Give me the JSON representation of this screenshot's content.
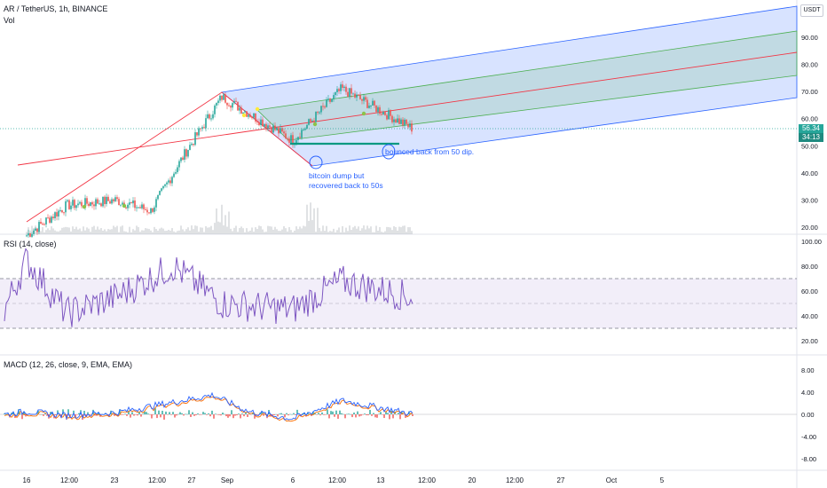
{
  "header": {
    "symbol": "AR / TetherUS, 1h, BINANCE",
    "volume_label": "Vol",
    "currency": "USDT"
  },
  "price_scale": {
    "ticks": [
      "90.00",
      "80.00",
      "70.00",
      "60.00",
      "50.00",
      "40.00",
      "30.00",
      "20.00"
    ],
    "last_price": "56.34",
    "countdown": "34:13",
    "last_price_color": "#26a69a"
  },
  "rsi": {
    "title": "RSI (14, close)",
    "ticks": [
      "100.00",
      "80.00",
      "60.00",
      "40.00",
      "20.00"
    ],
    "band": [
      30,
      70
    ]
  },
  "macd": {
    "title": "MACD (12, 26, close, 9, EMA, EMA)",
    "ticks": [
      "8.00",
      "4.00",
      "0.00",
      "-4.00",
      "-8.00"
    ]
  },
  "time_axis": {
    "labels": [
      "16",
      "12:00",
      "23",
      "12:00",
      "27",
      "Sep",
      "6",
      "12:00",
      "13",
      "12:00",
      "20",
      "12:00",
      "27",
      "Oct",
      "5"
    ]
  },
  "annotations": {
    "bitcoin_dump_line1": "bitcoin dump but",
    "bitcoin_dump_line2": "recovered back to 50s",
    "bounce": "bounced back from 50 dip."
  },
  "colors": {
    "channel_fill": "#2962ff",
    "channel_mid_fill": "#4caf50",
    "median_line": "#f23645",
    "rsi_line": "#7e57c2",
    "macd_line": "#2962ff",
    "signal_line": "#ff6d00",
    "support_line": "#089981",
    "up": "#26a69a",
    "down": "#ef5350"
  },
  "chart_data": {
    "type": "line",
    "title": "AR / TetherUS, 1h, BINANCE",
    "x": [
      "16",
      "12:00",
      "23",
      "12:00",
      "27",
      "Sep",
      "6",
      "12:00",
      "13"
    ],
    "price": {
      "name": "AR / TetherUS",
      "values": [
        17,
        28,
        30,
        26,
        48,
        68,
        52,
        71,
        56.34
      ],
      "last": 56.34,
      "ylim": [
        18,
        97
      ]
    },
    "rsi": {
      "values": [
        45,
        85,
        42,
        55,
        80,
        50,
        45,
        68,
        55
      ],
      "ylim": [
        0,
        100
      ]
    },
    "macd": {
      "values": [
        0,
        0.5,
        -0.2,
        0.3,
        3.5,
        0.5,
        -0.8,
        2.5,
        0.1
      ],
      "ylim": [
        -9,
        9
      ]
    },
    "support_level": 50,
    "annotations": [
      "bitcoin dump but recovered back to 50s",
      "bounced back from 50 dip."
    ]
  }
}
